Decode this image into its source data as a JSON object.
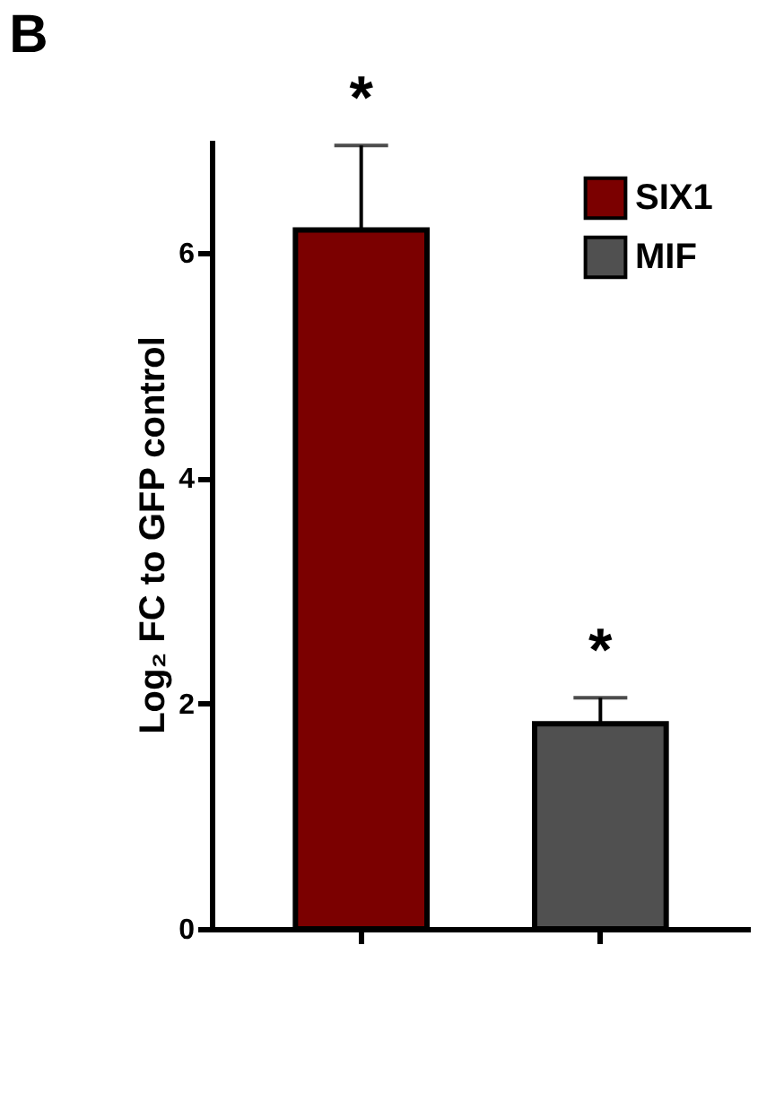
{
  "chart_data": {
    "type": "bar",
    "title": "B",
    "ylabel": "Log₂ FC to GFP control",
    "categories": [
      null,
      null
    ],
    "series": [
      {
        "name": "SIX1",
        "color": "#7b0000",
        "values": [
          6.2,
          null
        ],
        "errors": [
          [
            6.2,
            6.95
          ],
          null
        ]
      },
      {
        "name": "MIF",
        "color": "#505050",
        "values": [
          null,
          1.82
        ],
        "errors": [
          null,
          [
            1.82,
            2.05
          ]
        ]
      }
    ],
    "annotations": [
      {
        "text": "*",
        "y": 6.95
      },
      {
        "text": "*",
        "y": 2.05
      }
    ],
    "ylim": [
      0,
      7
    ],
    "yticks": [
      0,
      2,
      4,
      6
    ],
    "grid": false,
    "legend": "top right"
  }
}
